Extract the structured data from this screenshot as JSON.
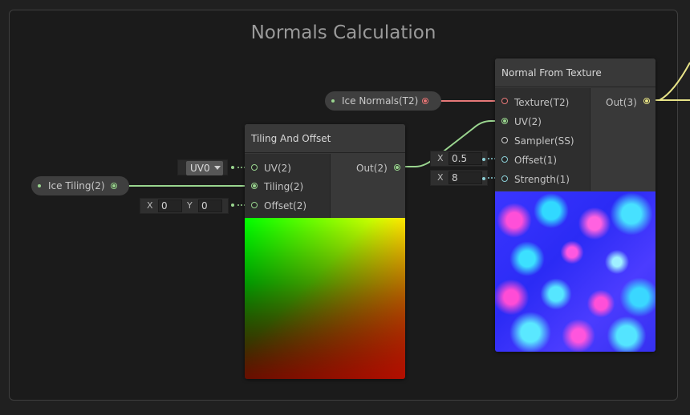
{
  "group": {
    "title": "Normals Calculation"
  },
  "properties": {
    "ice_normals": {
      "label": "Ice Normals(T2)"
    },
    "ice_tiling": {
      "label": "Ice Tiling(2)"
    }
  },
  "tiling_and_offset": {
    "title": "Tiling And Offset",
    "inputs": {
      "uv": "UV(2)",
      "tiling": "Tiling(2)",
      "offset": "Offset(2)"
    },
    "output": "Out(2)",
    "uv_dropdown": "UV0",
    "offset_field": {
      "x_axis": "X",
      "x_value": "0",
      "y_axis": "Y",
      "y_value": "0"
    }
  },
  "normal_from_texture": {
    "title": "Normal From Texture",
    "inputs": {
      "texture": "Texture(T2)",
      "uv": "UV(2)",
      "sampler": "Sampler(SS)",
      "offset": "Offset(1)",
      "strength": "Strength(1)"
    },
    "output": "Out(3)",
    "offset_field": {
      "axis": "X",
      "value": "0.5"
    },
    "strength_field": {
      "axis": "X",
      "value": "8"
    }
  },
  "colors": {
    "vector_port": "#9ad58f",
    "texture_port": "#e67878",
    "vector3_port": "#e8e488",
    "float_port": "#8ccfd6"
  }
}
